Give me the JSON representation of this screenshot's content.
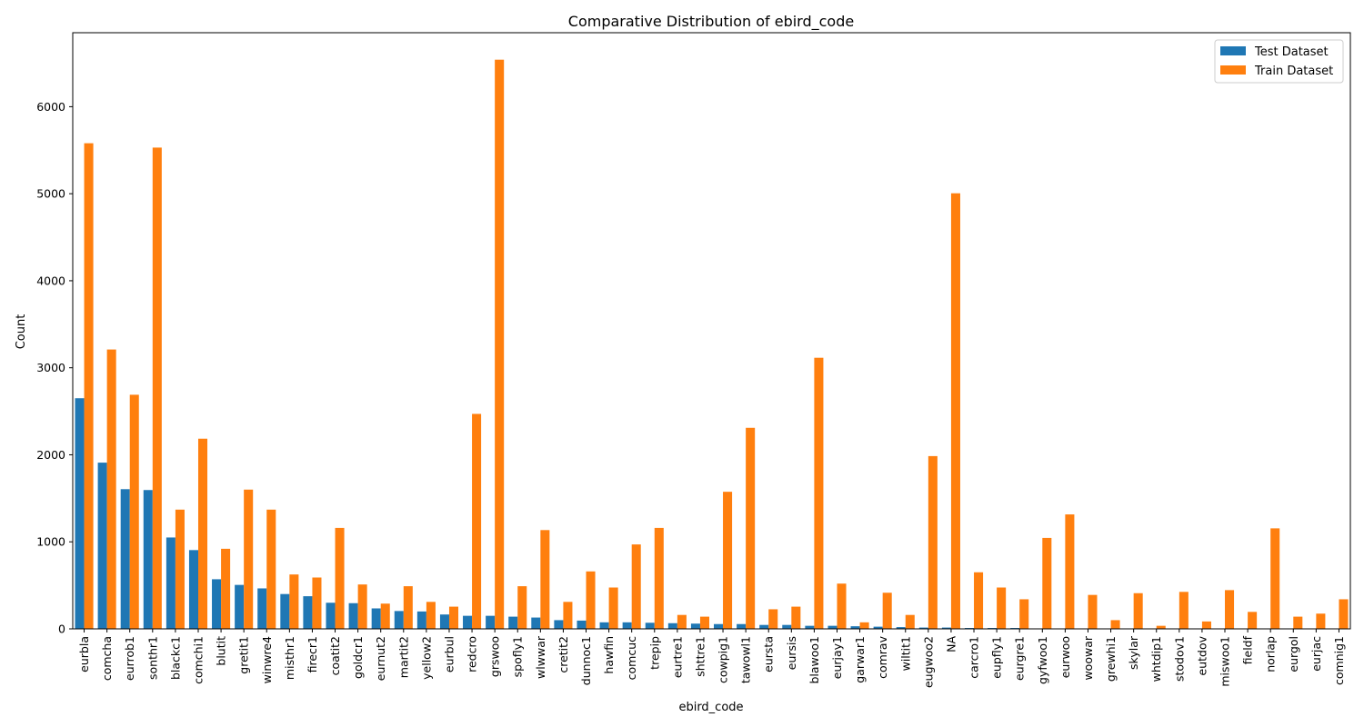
{
  "chart_data": {
    "type": "bar",
    "title": "Comparative Distribution of ebird_code",
    "xlabel": "ebird_code",
    "ylabel": "Count",
    "ylim": [
      0,
      6850
    ],
    "yticks": [
      0,
      1000,
      2000,
      3000,
      4000,
      5000,
      6000
    ],
    "legend_position": "top-right",
    "grid": false,
    "categories": [
      "eurbla",
      "comcha",
      "eurrob1",
      "sonthr1",
      "blackc1",
      "comchi1",
      "blutit",
      "gretit1",
      "winwre4",
      "misthr1",
      "firecr1",
      "coatit2",
      "goldcr1",
      "eurnut2",
      "martit2",
      "yellow2",
      "eurbul",
      "redcro",
      "grswoo",
      "spofly1",
      "wlwwar",
      "cretit2",
      "dunnoc1",
      "hawfin",
      "comcuc",
      "trepip",
      "eurtre1",
      "shttre1",
      "cowpig1",
      "tawowl1",
      "eursta",
      "eursis",
      "blawoo1",
      "eurjay1",
      "garwar1",
      "comrav",
      "wiltit1",
      "eugwoo2",
      "NA",
      "carcro1",
      "eupfly1",
      "eurgre1",
      "gyfwoo1",
      "eurwoo",
      "woowar",
      "grewhi1",
      "skylar",
      "whtdip1",
      "stodov1",
      "eutdov",
      "miswoo1",
      "fieldf",
      "norlap",
      "eurgol",
      "eurjac",
      "comnig1"
    ],
    "series": [
      {
        "name": "Test Dataset",
        "color": "#1f77b4",
        "values": [
          2650,
          1910,
          1605,
          1595,
          1050,
          905,
          570,
          505,
          465,
          400,
          375,
          300,
          295,
          235,
          205,
          200,
          165,
          150,
          150,
          140,
          130,
          100,
          95,
          75,
          75,
          70,
          65,
          60,
          55,
          55,
          45,
          45,
          35,
          35,
          30,
          25,
          20,
          15,
          15,
          10,
          10,
          10,
          5,
          0,
          0,
          0,
          0,
          0,
          0,
          0,
          0,
          0,
          0,
          0,
          0,
          0
        ]
      },
      {
        "name": "Train Dataset",
        "color": "#ff7f0e",
        "values": [
          5580,
          3210,
          2690,
          5530,
          1370,
          2185,
          920,
          1600,
          1370,
          625,
          590,
          1160,
          510,
          290,
          490,
          310,
          255,
          2470,
          6540,
          490,
          1135,
          310,
          660,
          475,
          970,
          1160,
          160,
          140,
          1575,
          2310,
          225,
          255,
          3115,
          520,
          75,
          415,
          160,
          1985,
          5005,
          650,
          475,
          340,
          1045,
          1315,
          390,
          100,
          410,
          35,
          425,
          85,
          445,
          195,
          1155,
          140,
          175,
          340
        ]
      }
    ]
  }
}
